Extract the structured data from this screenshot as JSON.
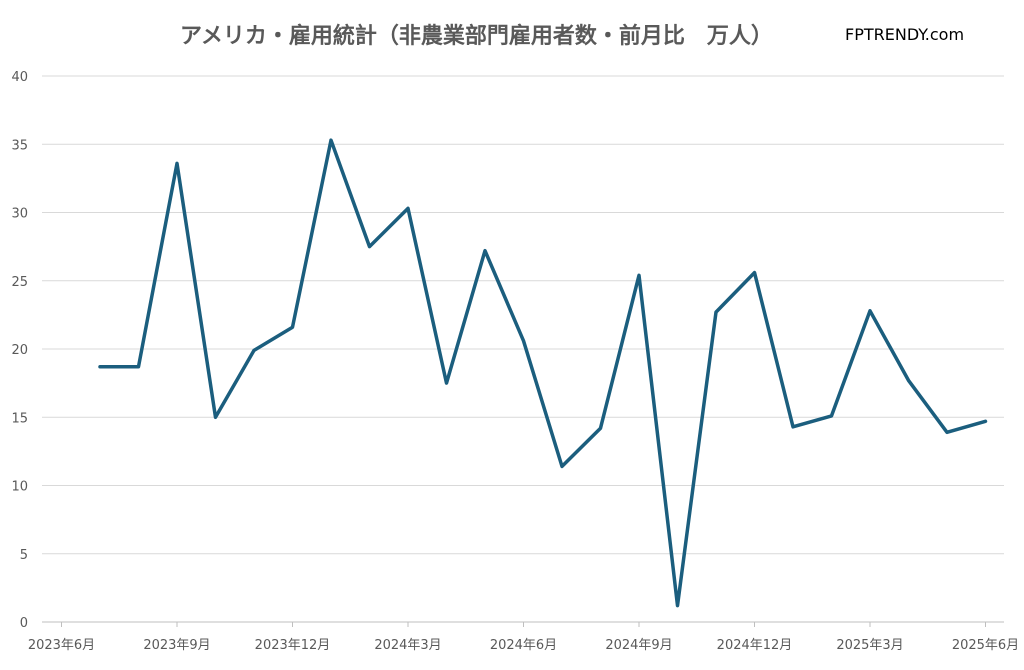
{
  "title": "アメリカ・雇用統計（非農業部門雇用者数・前月比　万人）",
  "brand": "FPTRENDY.com",
  "chart_data": {
    "type": "line",
    "title": "アメリカ・雇用統計（非農業部門雇用者数・前月比　万人）",
    "xlabel": "",
    "ylabel": "",
    "ylim": [
      0,
      40
    ],
    "yticks": [
      0,
      5,
      10,
      15,
      20,
      25,
      30,
      35,
      40
    ],
    "grid": true,
    "xtick_labels": [
      "2023年6月",
      "2023年9月",
      "2023年12月",
      "2024年3月",
      "2024年6月",
      "2024年9月",
      "2024年12月",
      "2025年3月",
      "2025年6月"
    ],
    "x": [
      "2023-07",
      "2023-08",
      "2023-09",
      "2023-10",
      "2023-11",
      "2023-12",
      "2024-01",
      "2024-02",
      "2024-03",
      "2024-04",
      "2024-05",
      "2024-06",
      "2024-07",
      "2024-08",
      "2024-09",
      "2024-10",
      "2024-11",
      "2024-12",
      "2025-01",
      "2025-02",
      "2025-03",
      "2025-04",
      "2025-05",
      "2025-06"
    ],
    "series": [
      {
        "color": "#1b5e7e",
        "values": [
          18.7,
          18.7,
          33.6,
          15.0,
          19.9,
          21.6,
          35.3,
          27.5,
          30.3,
          17.5,
          27.2,
          20.6,
          11.4,
          14.2,
          25.4,
          1.2,
          22.7,
          25.6,
          14.3,
          15.1,
          22.8,
          17.7,
          13.9,
          14.7
        ]
      }
    ]
  }
}
